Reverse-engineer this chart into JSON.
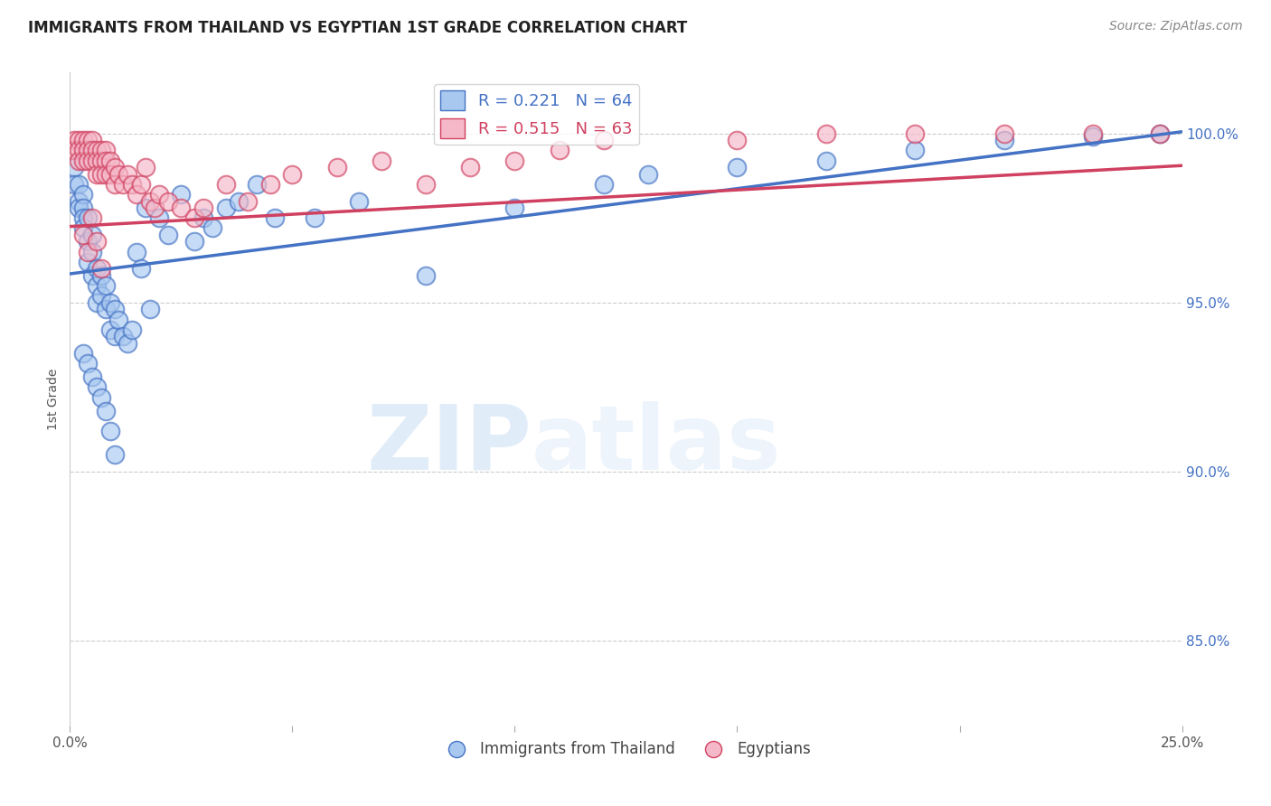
{
  "title": "IMMIGRANTS FROM THAILAND VS EGYPTIAN 1ST GRADE CORRELATION CHART",
  "source": "Source: ZipAtlas.com",
  "ylabel": "1st Grade",
  "ylabel_right_ticks": [
    "85.0%",
    "90.0%",
    "95.0%",
    "100.0%"
  ],
  "ylabel_right_vals": [
    0.85,
    0.9,
    0.95,
    1.0
  ],
  "x_min": 0.0,
  "x_max": 0.25,
  "y_min": 0.825,
  "y_max": 1.018,
  "legend_blue_label": "Immigrants from Thailand",
  "legend_pink_label": "Egyptians",
  "legend_blue_r": "R = 0.221",
  "legend_blue_n": "N = 64",
  "legend_pink_r": "R = 0.515",
  "legend_pink_n": "N = 63",
  "blue_color": "#a8c8f0",
  "pink_color": "#f5b8c8",
  "blue_line_color": "#4472c4",
  "pink_line_color": "#d04060",
  "background_color": "#ffffff",
  "watermark_zip": "ZIP",
  "watermark_atlas": "atlas",
  "blue_regression": [
    0.9585,
    1.0005
  ],
  "pink_regression": [
    0.9725,
    0.9905
  ],
  "blue_scatter_x": [
    0.001,
    0.001,
    0.002,
    0.002,
    0.002,
    0.003,
    0.003,
    0.003,
    0.003,
    0.004,
    0.004,
    0.004,
    0.005,
    0.005,
    0.005,
    0.006,
    0.006,
    0.006,
    0.007,
    0.007,
    0.008,
    0.008,
    0.009,
    0.009,
    0.01,
    0.01,
    0.011,
    0.012,
    0.013,
    0.014,
    0.015,
    0.016,
    0.017,
    0.018,
    0.02,
    0.022,
    0.025,
    0.028,
    0.03,
    0.032,
    0.035,
    0.038,
    0.042,
    0.046,
    0.055,
    0.065,
    0.08,
    0.1,
    0.12,
    0.13,
    0.15,
    0.17,
    0.19,
    0.21,
    0.23,
    0.245,
    0.003,
    0.004,
    0.005,
    0.006,
    0.007,
    0.008,
    0.009,
    0.01
  ],
  "blue_scatter_y": [
    0.99,
    0.985,
    0.985,
    0.98,
    0.978,
    0.982,
    0.978,
    0.975,
    0.972,
    0.975,
    0.968,
    0.962,
    0.97,
    0.965,
    0.958,
    0.96,
    0.955,
    0.95,
    0.958,
    0.952,
    0.955,
    0.948,
    0.95,
    0.942,
    0.948,
    0.94,
    0.945,
    0.94,
    0.938,
    0.942,
    0.965,
    0.96,
    0.978,
    0.948,
    0.975,
    0.97,
    0.982,
    0.968,
    0.975,
    0.972,
    0.978,
    0.98,
    0.985,
    0.975,
    0.975,
    0.98,
    0.958,
    0.978,
    0.985,
    0.988,
    0.99,
    0.992,
    0.995,
    0.998,
    0.999,
    1.0,
    0.935,
    0.932,
    0.928,
    0.925,
    0.922,
    0.918,
    0.912,
    0.905
  ],
  "pink_scatter_x": [
    0.001,
    0.001,
    0.002,
    0.002,
    0.002,
    0.003,
    0.003,
    0.003,
    0.004,
    0.004,
    0.004,
    0.005,
    0.005,
    0.005,
    0.006,
    0.006,
    0.006,
    0.007,
    0.007,
    0.007,
    0.008,
    0.008,
    0.008,
    0.009,
    0.009,
    0.01,
    0.01,
    0.011,
    0.012,
    0.013,
    0.014,
    0.015,
    0.016,
    0.017,
    0.018,
    0.019,
    0.02,
    0.022,
    0.025,
    0.028,
    0.03,
    0.035,
    0.04,
    0.045,
    0.05,
    0.06,
    0.07,
    0.08,
    0.09,
    0.1,
    0.11,
    0.12,
    0.15,
    0.17,
    0.19,
    0.21,
    0.23,
    0.245,
    0.003,
    0.004,
    0.005,
    0.006,
    0.007
  ],
  "pink_scatter_y": [
    0.998,
    0.995,
    0.998,
    0.995,
    0.992,
    0.998,
    0.995,
    0.992,
    0.998,
    0.995,
    0.992,
    0.998,
    0.995,
    0.992,
    0.995,
    0.992,
    0.988,
    0.995,
    0.992,
    0.988,
    0.995,
    0.992,
    0.988,
    0.992,
    0.988,
    0.99,
    0.985,
    0.988,
    0.985,
    0.988,
    0.985,
    0.982,
    0.985,
    0.99,
    0.98,
    0.978,
    0.982,
    0.98,
    0.978,
    0.975,
    0.978,
    0.985,
    0.98,
    0.985,
    0.988,
    0.99,
    0.992,
    0.985,
    0.99,
    0.992,
    0.995,
    0.998,
    0.998,
    1.0,
    1.0,
    1.0,
    1.0,
    1.0,
    0.97,
    0.965,
    0.975,
    0.968,
    0.96
  ]
}
